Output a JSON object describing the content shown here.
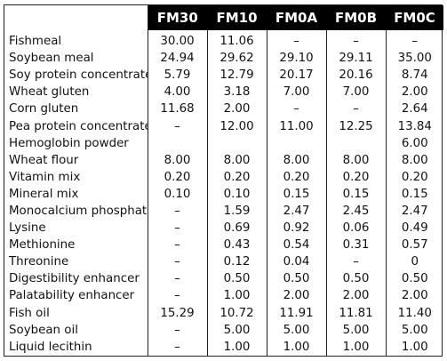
{
  "table": {
    "columns": [
      "FM30",
      "FM10",
      "FM0A",
      "FM0B",
      "FM0C"
    ],
    "rows": [
      {
        "label": "Fishmeal",
        "values": [
          "30.00",
          "11.06",
          "–",
          "–",
          "–"
        ]
      },
      {
        "label": "Soybean meal",
        "values": [
          "24.94",
          "29.62",
          "29.10",
          "29.11",
          "35.00"
        ]
      },
      {
        "label": "Soy protein concentrate",
        "values": [
          "5.79",
          "12.79",
          "20.17",
          "20.16",
          "8.74"
        ]
      },
      {
        "label": "Wheat gluten",
        "values": [
          "4.00",
          "3.18",
          "7.00",
          "7.00",
          "2.00"
        ]
      },
      {
        "label": "Corn gluten",
        "values": [
          "11.68",
          "2.00",
          "–",
          "–",
          "2.64"
        ]
      },
      {
        "label": "Pea protein concentrate",
        "values": [
          "–",
          "12.00",
          "11.00",
          "12.25",
          "13.84"
        ]
      },
      {
        "label": "Hemoglobin powder",
        "values": [
          "",
          "",
          "",
          "",
          "6.00"
        ]
      },
      {
        "label": "Wheat flour",
        "values": [
          "8.00",
          "8.00",
          "8.00",
          "8.00",
          "8.00"
        ]
      },
      {
        "label": "Vitamin mix",
        "values": [
          "0.20",
          "0.20",
          "0.20",
          "0.20",
          "0.20"
        ]
      },
      {
        "label": "Mineral mix",
        "values": [
          "0.10",
          "0.10",
          "0.15",
          "0.15",
          "0.15"
        ]
      },
      {
        "label": "Monocalcium phosphate",
        "values": [
          "–",
          "1.59",
          "2.47",
          "2.45",
          "2.47"
        ]
      },
      {
        "label": "Lysine",
        "values": [
          "–",
          "0.69",
          "0.92",
          "0.06",
          "0.49"
        ]
      },
      {
        "label": "Methionine",
        "values": [
          "–",
          "0.43",
          "0.54",
          "0.31",
          "0.57"
        ]
      },
      {
        "label": "Threonine",
        "values": [
          "–",
          "0.12",
          "0.04",
          "–",
          "0"
        ]
      },
      {
        "label": "Digestibility enhancer",
        "values": [
          "–",
          "0.50",
          "0.50",
          "0.50",
          "0.50"
        ]
      },
      {
        "label": "Palatability enhancer",
        "values": [
          "–",
          "1.00",
          "2.00",
          "2.00",
          "2.00"
        ]
      },
      {
        "label": "Fish oil",
        "values": [
          "15.29",
          "10.72",
          "11.91",
          "11.81",
          "11.40"
        ]
      },
      {
        "label": "Soybean oil",
        "values": [
          "–",
          "5.00",
          "5.00",
          "5.00",
          "5.00"
        ]
      },
      {
        "label": "Liquid lecithin",
        "values": [
          "–",
          "1.00",
          "1.00",
          "1.00",
          "1.00"
        ]
      }
    ]
  }
}
